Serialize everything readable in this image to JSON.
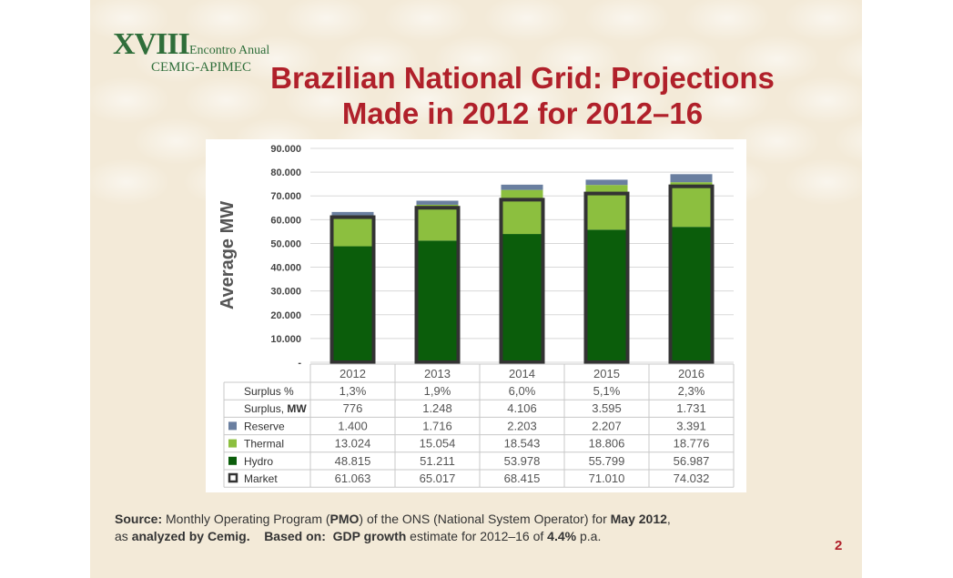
{
  "logo": {
    "roman": "XVIII",
    "line1": "Encontro Anual",
    "line2": "CEMIG-APIMEC"
  },
  "title": {
    "line1": "Brazilian National Grid: Projections",
    "line2": "Made in 2012 for 2012–16"
  },
  "colors": {
    "hydro": "#0b5d0b",
    "thermal": "#8cbf3f",
    "reserve": "#6a7fa0",
    "market_outline": "#333333",
    "title": "#b0202a"
  },
  "chart_data": {
    "type": "bar",
    "stacked": true,
    "ylabel": "Average MW",
    "ylim": [
      0,
      90000
    ],
    "yticks": [
      "-",
      "10.000",
      "20.000",
      "30.000",
      "40.000",
      "50.000",
      "60.000",
      "70.000",
      "80.000",
      "90.000"
    ],
    "categories": [
      "2012",
      "2013",
      "2014",
      "2015",
      "2016"
    ],
    "series": [
      {
        "name": "Hydro",
        "values": [
          48815,
          51211,
          53978,
          55799,
          56987
        ]
      },
      {
        "name": "Thermal",
        "values": [
          13024,
          15054,
          18543,
          18806,
          18776
        ]
      },
      {
        "name": "Reserve",
        "values": [
          1400,
          1716,
          2203,
          2207,
          3391
        ]
      }
    ],
    "market": {
      "name": "Market",
      "values": [
        61063,
        65017,
        68415,
        71010,
        74032
      ]
    },
    "table": [
      {
        "label": "Surplus %",
        "marker": "none",
        "cells": [
          "1,3%",
          "1,9%",
          "6,0%",
          "5,1%",
          "2,3%"
        ]
      },
      {
        "label_pre": "Surplus, ",
        "label_bold": "MW",
        "marker": "none",
        "cells": [
          "776",
          "1.248",
          "4.106",
          "3.595",
          "1.731"
        ]
      },
      {
        "label": "Reserve",
        "marker": "reserve",
        "cells": [
          "1.400",
          "1.716",
          "2.203",
          "2.207",
          "3.391"
        ]
      },
      {
        "label": "Thermal",
        "marker": "thermal",
        "cells": [
          "13.024",
          "15.054",
          "18.543",
          "18.806",
          "18.776"
        ]
      },
      {
        "label": "Hydro",
        "marker": "hydro",
        "cells": [
          "48.815",
          "51.211",
          "53.978",
          "55.799",
          "56.987"
        ]
      },
      {
        "label": "Market",
        "marker": "market",
        "cells": [
          "61.063",
          "65.017",
          "68.415",
          "71.010",
          "74.032"
        ]
      }
    ]
  },
  "footer": {
    "source_label": "Source:",
    "t1": " Monthly Operating Program (",
    "pmo": "PMO",
    "t2": ") of the ONS (National System Operator) for ",
    "may": "May 2012",
    "t3": ",",
    "t4": "as ",
    "analyzed": "analyzed by Cemig.",
    "based": "Based on:",
    "gdp": "GDP growth",
    "t5": " estimate for 2012–16 of ",
    "pct": "4.4%",
    "t6": " p.a."
  },
  "page_number": "2"
}
